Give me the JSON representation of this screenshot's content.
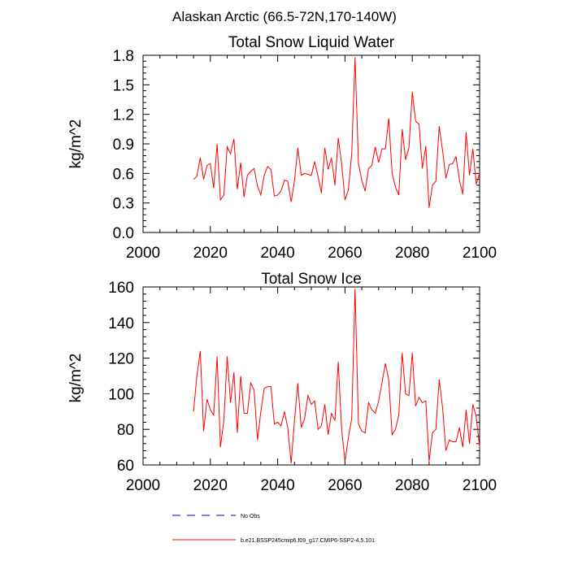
{
  "figure": {
    "suptitle": "Alaskan Arctic (66.5-72N,170-140W)"
  },
  "colors": {
    "series": "#ff0000",
    "obs": "#0000cc",
    "axis": "#000000"
  },
  "legend": {
    "items": [
      {
        "label": "No Obs",
        "color": "#0000cc",
        "style": "dashed"
      },
      {
        "label": "b.e21.BSSP245cmip6.f09_g17.CMIP6-SSP2-4.5.101",
        "color": "#ff0000",
        "style": "solid"
      }
    ]
  },
  "chart_data": [
    {
      "type": "line",
      "title": "Total Snow Liquid Water",
      "xlabel": "",
      "ylabel": "kg/m^2",
      "xlim": [
        2000,
        2100
      ],
      "ylim": [
        0.0,
        1.8
      ],
      "xticks": [
        2000,
        2020,
        2040,
        2060,
        2080,
        2100
      ],
      "yticks": [
        0.0,
        0.3,
        0.6,
        0.9,
        1.2,
        1.5,
        1.8
      ],
      "ytick_labels": [
        "0.0",
        "0.3",
        "0.6",
        "0.9",
        "1.2",
        "1.5",
        "1.8"
      ],
      "grid": false,
      "series": [
        {
          "name": "b.e21.BSSP245cmip6.f09_g17.CMIP6-SSP2-4.5.101",
          "x": [
            2015,
            2016,
            2017,
            2018,
            2019,
            2020,
            2021,
            2022,
            2023,
            2024,
            2025,
            2026,
            2027,
            2028,
            2029,
            2030,
            2031,
            2032,
            2033,
            2034,
            2035,
            2036,
            2037,
            2038,
            2039,
            2040,
            2041,
            2042,
            2043,
            2044,
            2045,
            2046,
            2047,
            2048,
            2049,
            2050,
            2051,
            2052,
            2053,
            2054,
            2055,
            2056,
            2057,
            2058,
            2059,
            2060,
            2061,
            2062,
            2063,
            2064,
            2065,
            2066,
            2067,
            2068,
            2069,
            2070,
            2071,
            2072,
            2073,
            2074,
            2075,
            2076,
            2077,
            2078,
            2079,
            2080,
            2081,
            2082,
            2083,
            2084,
            2085,
            2086,
            2087,
            2088,
            2089,
            2090,
            2091,
            2092,
            2093,
            2094,
            2095,
            2096,
            2097,
            2098,
            2099,
            2100
          ],
          "y": [
            0.54,
            0.57,
            0.76,
            0.54,
            0.68,
            0.7,
            0.45,
            0.9,
            0.33,
            0.38,
            0.87,
            0.8,
            0.95,
            0.44,
            0.71,
            0.36,
            0.58,
            0.62,
            0.65,
            0.47,
            0.38,
            0.58,
            0.67,
            0.64,
            0.37,
            0.38,
            0.42,
            0.53,
            0.52,
            0.31,
            0.53,
            0.86,
            0.58,
            0.6,
            0.59,
            0.58,
            0.72,
            0.57,
            0.4,
            0.86,
            0.64,
            0.76,
            0.48,
            0.96,
            0.7,
            0.33,
            0.43,
            0.8,
            1.78,
            0.7,
            0.53,
            0.42,
            0.65,
            0.68,
            0.87,
            0.71,
            0.85,
            0.85,
            1.16,
            0.6,
            0.46,
            0.38,
            1.05,
            0.74,
            0.86,
            1.43,
            1.13,
            1.1,
            0.65,
            0.88,
            0.25,
            0.48,
            0.52,
            1.08,
            0.83,
            0.55,
            0.69,
            0.7,
            0.77,
            0.53,
            0.39,
            1.02,
            0.58,
            0.85,
            0.49,
            0.6
          ]
        }
      ]
    },
    {
      "type": "line",
      "title": "Total Snow Ice",
      "xlabel": "",
      "ylabel": "kg/m^2",
      "xlim": [
        2000,
        2100
      ],
      "ylim": [
        60,
        160
      ],
      "xticks": [
        2000,
        2020,
        2040,
        2060,
        2080,
        2100
      ],
      "yticks": [
        60,
        80,
        100,
        120,
        140,
        160
      ],
      "ytick_labels": [
        "60",
        "80",
        "100",
        "120",
        "140",
        "160"
      ],
      "grid": false,
      "series": [
        {
          "name": "b.e21.BSSP245cmip6.f09_g17.CMIP6-SSP2-4.5.101",
          "x": [
            2015,
            2016,
            2017,
            2018,
            2019,
            2020,
            2021,
            2022,
            2023,
            2024,
            2025,
            2026,
            2027,
            2028,
            2029,
            2030,
            2031,
            2032,
            2033,
            2034,
            2035,
            2036,
            2037,
            2038,
            2039,
            2040,
            2041,
            2042,
            2043,
            2044,
            2045,
            2046,
            2047,
            2048,
            2049,
            2050,
            2051,
            2052,
            2053,
            2054,
            2055,
            2056,
            2057,
            2058,
            2059,
            2060,
            2061,
            2062,
            2063,
            2064,
            2065,
            2066,
            2067,
            2068,
            2069,
            2070,
            2071,
            2072,
            2073,
            2074,
            2075,
            2076,
            2077,
            2078,
            2079,
            2080,
            2081,
            2082,
            2083,
            2084,
            2085,
            2086,
            2087,
            2088,
            2089,
            2090,
            2091,
            2092,
            2093,
            2094,
            2095,
            2096,
            2097,
            2098,
            2099,
            2100
          ],
          "y": [
            90,
            110,
            124,
            79,
            97,
            91,
            88,
            121,
            70,
            85,
            121,
            95,
            112,
            78,
            110,
            89,
            89,
            106,
            102,
            74,
            90,
            103,
            104,
            104,
            83,
            84,
            82,
            90,
            81,
            61,
            85,
            106,
            81,
            86,
            99,
            94,
            96,
            80,
            82,
            94,
            77,
            89,
            85,
            118,
            80,
            62,
            75,
            86,
            159,
            83,
            79,
            78,
            95,
            91,
            89,
            96,
            106,
            117,
            108,
            77,
            80,
            88,
            123,
            100,
            99,
            123,
            93,
            98,
            95,
            96,
            62,
            78,
            80,
            108,
            92,
            68,
            74,
            73,
            73,
            81,
            70,
            91,
            72,
            94,
            87,
            70
          ]
        }
      ]
    }
  ]
}
